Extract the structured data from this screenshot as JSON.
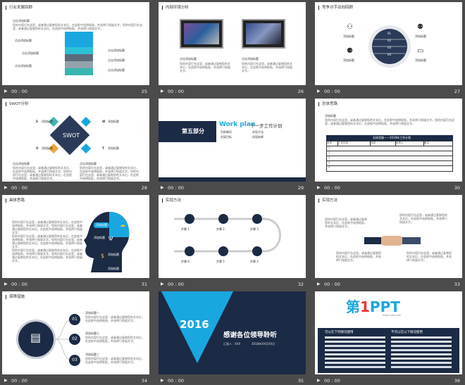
{
  "slides": [
    {
      "num": "25",
      "duration": "00 : 00",
      "title": "行业发展回顾",
      "heading": "点击添加标题",
      "body": "您的内容打在这里，或者通过复制您的文本后，在此框中选择粘贴，并选择只保留文字。您的内容打在这里，或者通过复制您的文本后，在此框中选择粘贴，并选择只保留文字。",
      "labels": [
        "点击添加标题",
        "点击添加标题",
        "点击添加标题",
        "点击添加标题",
        "点击添加标题",
        "点击添加标题"
      ]
    },
    {
      "num": "26",
      "duration": "00 : 00",
      "title": "内部环境分析",
      "labels": [
        "点击添加标题",
        "点击添加标题"
      ],
      "body": "您的内容打在这里，或者通过复制您的文本后，在此框中选择粘贴，并选择只保留文字。"
    },
    {
      "num": "27",
      "duration": "00 : 00",
      "title": "竞争对手动向回顾",
      "steps": [
        "01",
        "02",
        "03",
        "04"
      ],
      "labels": [
        "添加标题",
        "添加标题",
        "添加标题",
        "添加标题"
      ]
    },
    {
      "num": "28",
      "duration": "00 : 00",
      "title": "SWOT分析",
      "center": "SWOT",
      "letters": [
        "S",
        "W",
        "O",
        "T"
      ],
      "labels": [
        "添加标题",
        "添加标题",
        "添加标题",
        "添加标题"
      ],
      "bottom_titles": [
        "点击添加标题",
        "点击添加标题"
      ]
    },
    {
      "num": "29",
      "duration": "00 : 00",
      "part": "第五部分",
      "en": "Work plan",
      "zh": "下一步工作计划",
      "items": [
        "目前情况",
        "实现方法",
        "实现目标",
        "实现结果"
      ]
    },
    {
      "num": "30",
      "duration": "00 : 00",
      "title": "总体思路",
      "heading": "添加标题",
      "table_title": "总体思路——2018年工作计划",
      "cols": [
        "序号",
        "工作内容",
        "时间",
        "负责人",
        "备注"
      ],
      "rows": [
        "1",
        "2",
        "3",
        "4",
        "5"
      ]
    },
    {
      "num": "31",
      "duration": "00 : 00",
      "title": "具体思路",
      "labels": [
        "添加标题",
        "添加标题",
        "添加标题",
        "添加标题"
      ]
    },
    {
      "num": "32",
      "duration": "00 : 00",
      "title": "实现方法",
      "steps": [
        "步骤 1",
        "步骤 2",
        "步骤 3",
        "步骤 4",
        "步骤 5",
        "步骤 6"
      ]
    },
    {
      "num": "33",
      "duration": "00 : 00",
      "title": "实现方法"
    },
    {
      "num": "34",
      "duration": "00 : 00",
      "title": "保障措施",
      "numbers": [
        "01",
        "02",
        "03"
      ],
      "labels": [
        "添加标题一",
        "添加标题二",
        "添加标题三"
      ]
    },
    {
      "num": "35",
      "duration": "00 : 00",
      "year": "2016",
      "thanks": "感谢各位领导聆听",
      "presenter": "汇报人：XXX",
      "date": "2018年XX月XX日"
    },
    {
      "num": "36",
      "duration": "00 : 00",
      "logo_first": "第",
      "logo_one": "1",
      "logo_ppt": "PPT",
      "url": "www.1ppt.com",
      "left_head": "可以在下列情况使用",
      "right_head": "不可以在以下情况使用"
    }
  ],
  "colors": {
    "navy": "#1b2a45",
    "cyan": "#1aa7e0",
    "teal": "#3fb8b3",
    "background": "#4b4b4b"
  },
  "icons": {
    "play": "play-icon"
  }
}
